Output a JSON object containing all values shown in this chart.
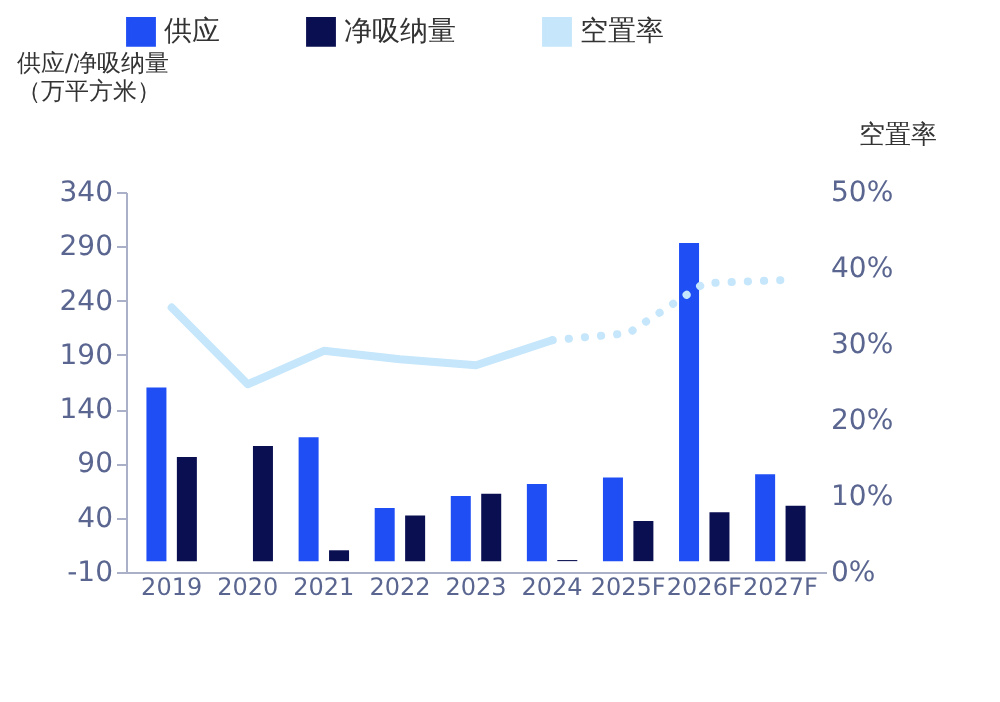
{
  "chart_data": {
    "type": "bar",
    "ylabel": "供应/净吸纳量（万平方米）",
    "y2label": "空置率",
    "categories": [
      "2019",
      "2020",
      "2021",
      "2022",
      "2023",
      "2024",
      "2025F",
      "2026F",
      "2027F"
    ],
    "series": [
      {
        "name": "供应",
        "color": "#1f4ef5",
        "values": [
          160,
          null,
          114,
          49,
          60,
          71,
          77,
          293,
          80
        ]
      },
      {
        "name": "净吸纳量",
        "color": "#0a0f52",
        "values": [
          96,
          106,
          10,
          42,
          62,
          1,
          37,
          45,
          51
        ]
      },
      {
        "name": "空置率",
        "type": "line",
        "axis": "y2",
        "color": "#c5e6fb",
        "line_style": "solid",
        "values": [
          34.8,
          24.7,
          29.1,
          28,
          27.2,
          30.5,
          null,
          null,
          null
        ]
      },
      {
        "type": "line",
        "axis": "y2",
        "color": "#c5e6fb",
        "line_style": "dotted",
        "values": [
          null,
          null,
          null,
          null,
          null,
          30.5,
          31.4,
          38,
          38.4
        ]
      }
    ],
    "ylim": [
      -10,
      340
    ],
    "yticks": [
      -10,
      40,
      90,
      140,
      190,
      240,
      290,
      340
    ],
    "y2lim": [
      0,
      50
    ],
    "y2ticks": [
      {
        "value": 0,
        "label": "0%"
      },
      {
        "value": 10,
        "label": "10%"
      },
      {
        "value": 20,
        "label": "20%"
      },
      {
        "value": 30,
        "label": "30%"
      },
      {
        "value": 40,
        "label": "40%"
      },
      {
        "value": 50,
        "label": "50%"
      }
    ],
    "legend": "top",
    "grid": false
  }
}
